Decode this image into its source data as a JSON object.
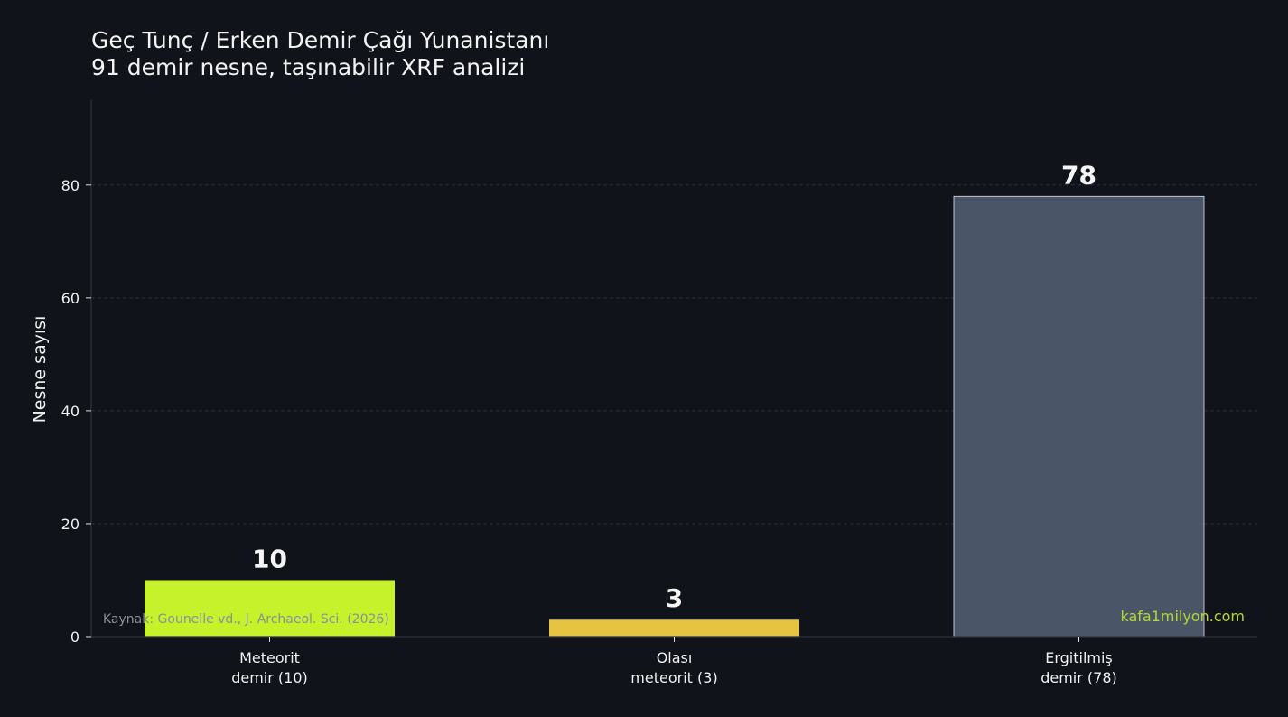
{
  "title_line1": "Geç Tunç / Erken Demir Çağı Yunanistanı",
  "title_line2": "91 demir nesne, taşınabilir XRF analizi",
  "source_note": "Kaynak: Gounelle vd., J. Archaeol. Sci. (2026)",
  "watermark": "kafa1milyon.com",
  "chart_data": {
    "type": "bar",
    "title": "Geç Tunç / Erken Demir Çağı Yunanistanı",
    "subtitle": "91 demir nesne, taşınabilir XRF analizi",
    "xlabel": "",
    "ylabel": "Nesne sayısı",
    "categories": [
      [
        "Meteorit",
        "demir (10)"
      ],
      [
        "Olası",
        "meteorit (3)"
      ],
      [
        "Ergitilmiş",
        "demir (78)"
      ]
    ],
    "values": [
      10,
      3,
      78
    ],
    "value_labels": [
      "10",
      "3",
      "78"
    ],
    "colors": [
      "#c5f22a",
      "#e6c341",
      "#4a5568"
    ],
    "ylim": [
      0,
      95
    ],
    "yticks": [
      0,
      20,
      40,
      60,
      80
    ],
    "grid": true,
    "legend": "none"
  }
}
